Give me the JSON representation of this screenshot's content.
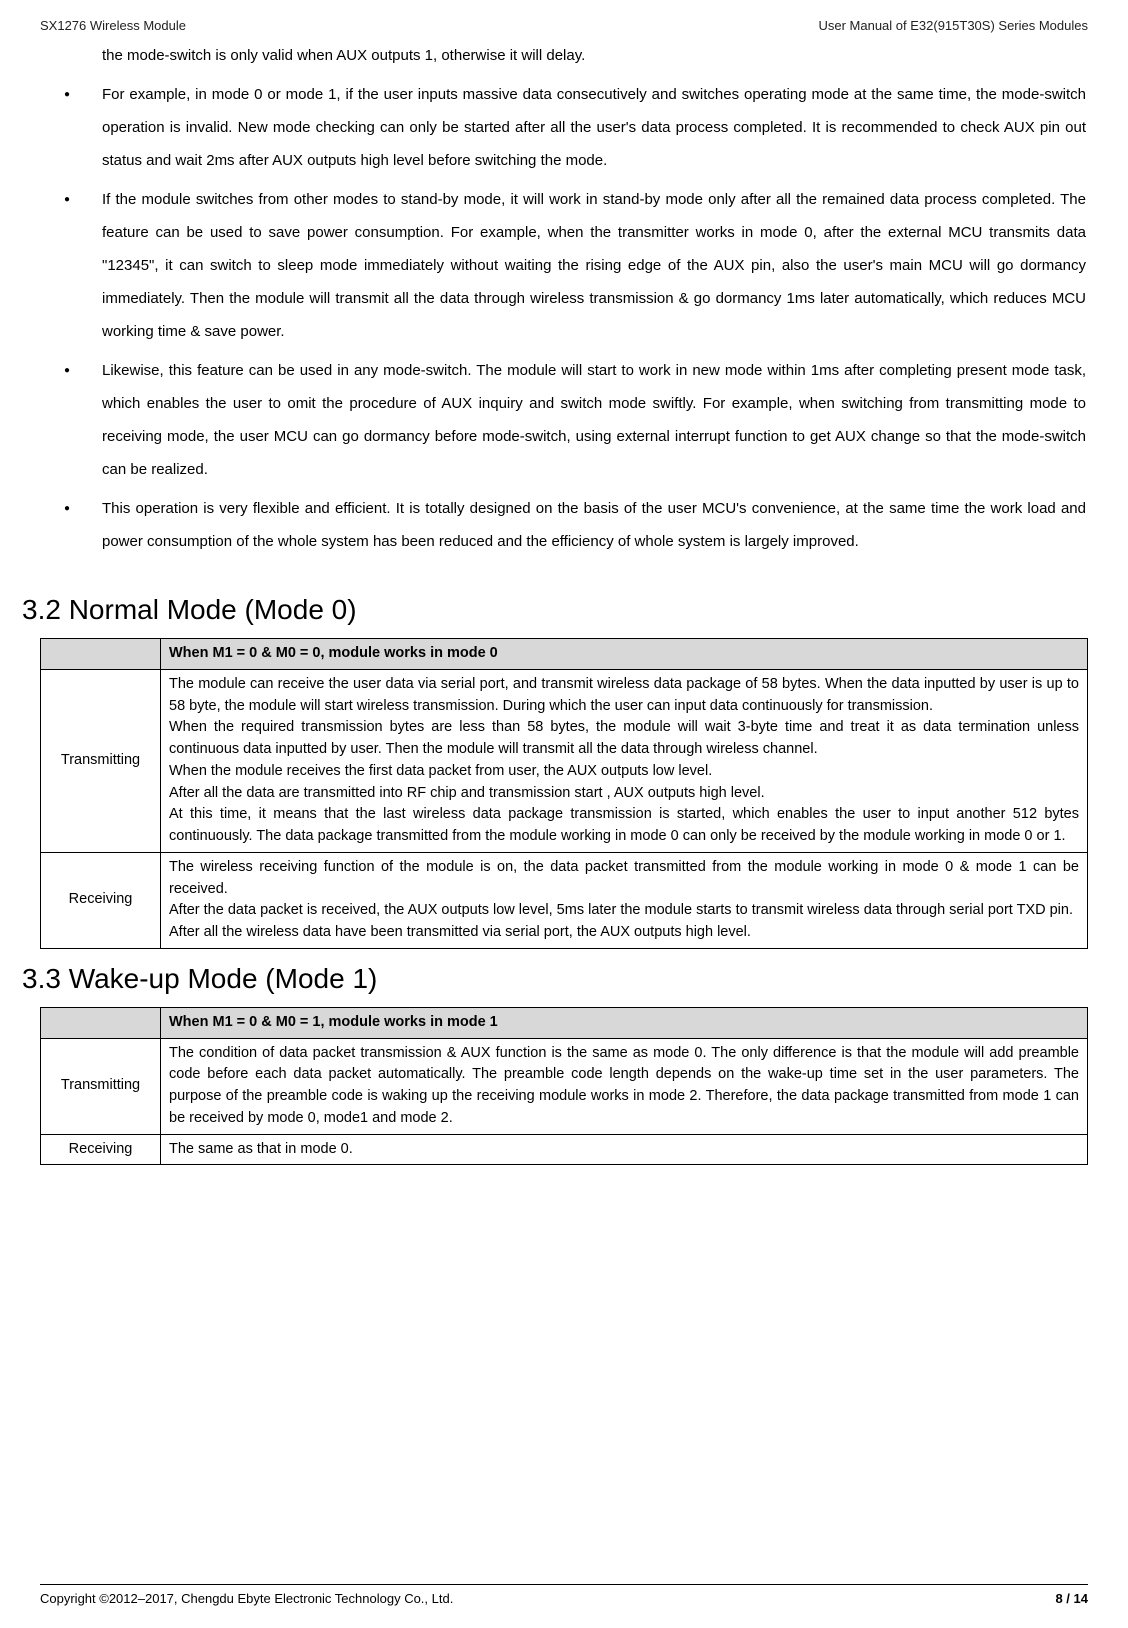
{
  "header": {
    "left": "SX1276 Wireless Module",
    "right": "User Manual of E32(915T30S) Series Modules"
  },
  "continuation": "the mode-switch is only valid when AUX outputs 1, otherwise it will delay.",
  "bullets": [
    "For example, in mode 0 or mode 1, if the user inputs massive data consecutively and switches operating mode at the same time, the mode-switch operation is invalid. New mode checking can only be started after all the user's data process completed. It is recommended to check AUX pin out status and wait 2ms after AUX outputs high level before switching the mode.",
    "If the module switches from other modes to stand-by mode, it will work in stand-by mode only after all the remained data process completed. The feature can be used to save power consumption. For example, when the transmitter works in mode 0, after the external MCU transmits data \"12345\", it can switch to sleep mode immediately without waiting the rising edge of the AUX pin, also the user's main MCU will go dormancy immediately. Then the module will transmit all the data through wireless transmission & go dormancy 1ms later automatically, which reduces MCU working time & save power.",
    "Likewise, this feature can be used in any mode-switch. The module will start to work in new mode within 1ms after completing present mode task, which enables the user to omit the procedure of AUX inquiry and switch mode swiftly. For example, when switching from transmitting mode to receiving mode, the user MCU can go dormancy before mode-switch, using external interrupt function to get AUX change so that the mode-switch can be realized.",
    "This operation is very flexible and efficient. It is totally designed on the basis of the user MCU's convenience, at the same time the work load and power consumption of the whole system has been reduced and the efficiency of whole system is largely improved."
  ],
  "section32": {
    "title": "3.2 Normal Mode (Mode 0)",
    "header_text": "When M1 = 0 & M0 = 0, module works in mode 0",
    "rows": [
      {
        "label": "Transmitting",
        "desc": "The module can receive the user data via serial port, and transmit wireless data package of 58 bytes. When the data inputted by user is up to 58 byte, the module will start wireless transmission. During which the user can input data continuously for transmission.\nWhen the required transmission bytes are less than 58 bytes, the module will wait 3-byte time and treat it as data termination unless continuous data inputted by user. Then the module will transmit all the data through wireless channel.\nWhen the module receives the first data packet from user, the AUX outputs low level.\nAfter all the data are transmitted into RF chip and transmission start , AUX outputs high level.\nAt this time, it means that the last wireless data package transmission is started, which enables the user to input another 512 bytes continuously. The data package transmitted from the module working in mode 0 can only be received by the module working in mode 0 or 1."
      },
      {
        "label": "Receiving",
        "desc": "The wireless receiving function of the module is on, the data packet transmitted from the module working in mode 0 & mode 1 can be received.\nAfter the data packet is received, the AUX outputs low level, 5ms later the module starts to transmit wireless data through serial port TXD pin.\nAfter all the wireless data have been transmitted via serial port, the AUX outputs high level."
      }
    ]
  },
  "section33": {
    "title": "3.3 Wake-up Mode (Mode 1)",
    "header_text": "When M1 = 0 & M0 = 1, module works in mode 1",
    "rows": [
      {
        "label": "Transmitting",
        "desc": "The condition of data packet transmission & AUX function is the same as mode 0. The only difference is that the module will add preamble code before each data packet automatically. The preamble code length depends on the wake-up time set in the user parameters. The purpose of the preamble code is waking up the receiving module works in mode 2. Therefore, the data package transmitted from mode 1 can be received by mode 0, mode1 and mode 2."
      },
      {
        "label": "Receiving",
        "desc": "The same as that in mode 0."
      }
    ]
  },
  "footer": {
    "left": "Copyright ©2012–2017, Chengdu Ebyte Electronic Technology Co., Ltd.",
    "page_current": "8",
    "page_sep": " / ",
    "page_total": "14"
  }
}
